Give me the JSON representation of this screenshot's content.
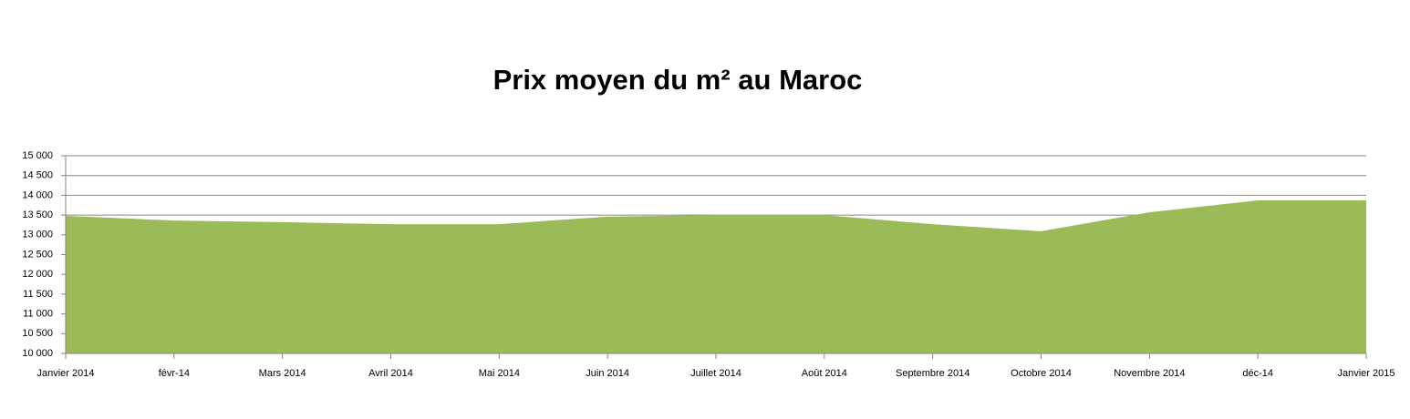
{
  "chart_data": {
    "type": "area",
    "title": "Prix moyen du m² au Maroc",
    "categories": [
      "Janvier 2014",
      "févr-14",
      "Mars 2014",
      "Avril 2014",
      "Mai 2014",
      "Juin 2014",
      "Juillet 2014",
      "Août 2014",
      "Septembre 2014",
      "Octobre 2014",
      "Novembre 2014",
      "déc-14",
      "Janvier 2015"
    ],
    "values": [
      13480,
      13360,
      13320,
      13270,
      13270,
      13460,
      13500,
      13500,
      13270,
      13090,
      13570,
      13870,
      13870
    ],
    "color": "#9bbb59",
    "ylim": [
      10000,
      15000
    ],
    "yticks": [
      {
        "value": 10000,
        "label": "10 000"
      },
      {
        "value": 10500,
        "label": "10 500"
      },
      {
        "value": 11000,
        "label": "11 000"
      },
      {
        "value": 11500,
        "label": "11 500"
      },
      {
        "value": 12000,
        "label": "12 000"
      },
      {
        "value": 12500,
        "label": "12 500"
      },
      {
        "value": 13000,
        "label": "13 000"
      },
      {
        "value": 13500,
        "label": "13 500"
      },
      {
        "value": 14000,
        "label": "14 000"
      },
      {
        "value": 14500,
        "label": "14 500"
      },
      {
        "value": 15000,
        "label": "15 000"
      }
    ],
    "grid": true
  }
}
